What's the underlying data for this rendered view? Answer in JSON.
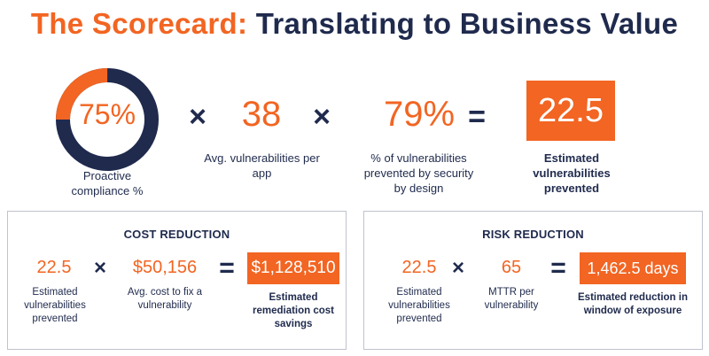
{
  "title": {
    "part1": "The Scorecard:",
    "part2": "Translating to Business Value"
  },
  "top": {
    "compliance": {
      "value": "75%",
      "fraction": 0.75,
      "label": "Proactive compliance %"
    },
    "op1": "×",
    "vulns_per_app": {
      "value": "38",
      "label": "Avg. vulnerabilities per app"
    },
    "op2": "×",
    "prevented_pct": {
      "value": "79%",
      "label": "% of vulnerabilities prevented by security by design"
    },
    "op3": "=",
    "result": {
      "value": "22.5",
      "label": "Estimated vulnerabilities prevented"
    }
  },
  "cost": {
    "title": "COST REDUCTION",
    "a": {
      "value": "22.5",
      "label": "Estimated vulnerabilities prevented"
    },
    "op1": "×",
    "b": {
      "value": "$50,156",
      "label": "Avg. cost to fix a vulnerability"
    },
    "op2": "=",
    "result": {
      "value": "$1,128,510",
      "label": "Estimated remediation cost savings"
    }
  },
  "risk": {
    "title": "RISK REDUCTION",
    "a": {
      "value": "22.5",
      "label": "Estimated vulnerabilities prevented"
    },
    "op1": "×",
    "b": {
      "value": "65",
      "label": "MTTR per vulnerability"
    },
    "op2": "=",
    "result": {
      "value": "1,462.5 days",
      "label": "Estimated reduction in window of exposure"
    }
  },
  "colors": {
    "accent": "#f26522",
    "navy": "#1f2a4d",
    "border": "#bfc3cc"
  }
}
